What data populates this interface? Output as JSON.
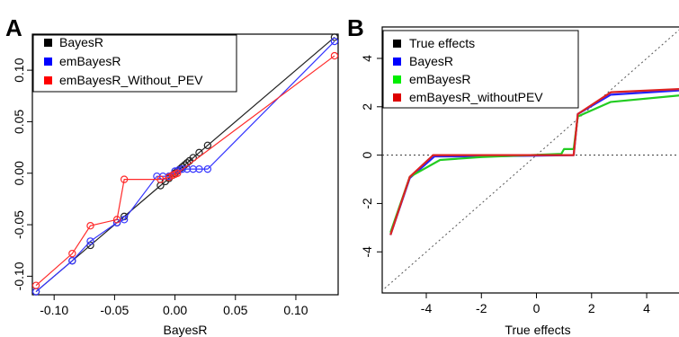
{
  "panels": [
    {
      "letter": "A",
      "chart_data": {
        "type": "scatter",
        "title": "",
        "xlabel": "BayesR",
        "ylabel": "",
        "xlim": [
          -0.118,
          0.135
        ],
        "ylim": [
          -0.118,
          0.135
        ],
        "x_ticks": [
          -0.1,
          -0.05,
          0,
          0.05,
          0.1
        ],
        "x_tick_labels": [
          "-0.10",
          "-0.05",
          "0.00",
          "0.05",
          "0.10"
        ],
        "y_ticks": [
          -0.1,
          -0.05,
          0,
          0.05,
          0.1
        ],
        "y_tick_labels": [
          "-0.10",
          "-0.05",
          "0.00",
          "0.05",
          "0.10"
        ],
        "grid": false,
        "legend_position": "top-left",
        "series": [
          {
            "name": "BayesR",
            "color": "#222222",
            "marker": "open-circle",
            "connected": true,
            "points": [
              [
                -0.115,
                -0.115
              ],
              [
                -0.085,
                -0.085
              ],
              [
                -0.07,
                -0.07
              ],
              [
                -0.048,
                -0.048
              ],
              [
                -0.042,
                -0.042
              ],
              [
                -0.012,
                -0.012
              ],
              [
                -0.008,
                -0.008
              ],
              [
                -0.005,
                -0.005
              ],
              [
                -0.002,
                -0.002
              ],
              [
                0.0,
                0.0
              ],
              [
                0.002,
                0.002
              ],
              [
                0.004,
                0.004
              ],
              [
                0.006,
                0.006
              ],
              [
                0.008,
                0.008
              ],
              [
                0.01,
                0.01
              ],
              [
                0.012,
                0.012
              ],
              [
                0.015,
                0.015
              ],
              [
                0.02,
                0.02
              ],
              [
                0.027,
                0.027
              ],
              [
                0.132,
                0.132
              ]
            ]
          },
          {
            "name": "emBayesR",
            "color": "#3333ff",
            "marker": "open-circle",
            "connected": true,
            "points": [
              [
                -0.115,
                -0.115
              ],
              [
                -0.085,
                -0.085
              ],
              [
                -0.07,
                -0.066
              ],
              [
                -0.048,
                -0.048
              ],
              [
                -0.042,
                -0.045
              ],
              [
                -0.015,
                -0.003
              ],
              [
                -0.01,
                -0.003
              ],
              [
                -0.005,
                -0.003
              ],
              [
                0.0,
                0.002
              ],
              [
                0.003,
                0.003
              ],
              [
                0.006,
                0.004
              ],
              [
                0.01,
                0.004
              ],
              [
                0.015,
                0.004
              ],
              [
                0.02,
                0.004
              ],
              [
                0.027,
                0.004
              ],
              [
                0.132,
                0.128
              ]
            ]
          },
          {
            "name": "emBayesR_Without_PEV",
            "color": "#ff2a2a",
            "marker": "open-circle",
            "connected": true,
            "points": [
              [
                -0.115,
                -0.109
              ],
              [
                -0.085,
                -0.078
              ],
              [
                -0.07,
                -0.051
              ],
              [
                -0.048,
                -0.045
              ],
              [
                -0.042,
                -0.006
              ],
              [
                -0.012,
                -0.006
              ],
              [
                -0.005,
                -0.004
              ],
              [
                -0.002,
                -0.002
              ],
              [
                0.0,
                -0.001
              ],
              [
                0.002,
                0.0
              ],
              [
                0.132,
                0.114
              ]
            ]
          }
        ]
      }
    },
    {
      "letter": "B",
      "chart_data": {
        "type": "line",
        "title": "",
        "xlabel": "True effects",
        "ylabel": "",
        "xlim": [
          -5.6,
          5.5
        ],
        "ylim": [
          -5.7,
          5.3
        ],
        "x_ticks": [
          -4,
          -2,
          0,
          2,
          4
        ],
        "x_tick_labels": [
          "-4",
          "-2",
          "0",
          "2",
          "4"
        ],
        "y_ticks": [
          -4,
          -2,
          0,
          2,
          4
        ],
        "y_tick_labels": [
          "-4",
          "-2",
          "0",
          "2",
          "4"
        ],
        "grid": false,
        "legend_position": "top-left",
        "reference_lines": [
          {
            "kind": "identity",
            "style": "dotted",
            "color": "#555555"
          },
          {
            "kind": "horizontal",
            "y": 0,
            "style": "dotted",
            "color": "#333333"
          }
        ],
        "series": [
          {
            "name": "True effects",
            "color": "#000000",
            "points": []
          },
          {
            "name": "BayesR",
            "color": "#2222ff",
            "points": [
              [
                -5.3,
                -3.3
              ],
              [
                -4.6,
                -0.95
              ],
              [
                -3.7,
                -0.05
              ],
              [
                -2.0,
                -0.05
              ],
              [
                1.35,
                0.0
              ],
              [
                1.5,
                1.7
              ],
              [
                2.7,
                2.5
              ],
              [
                5.5,
                2.7
              ]
            ]
          },
          {
            "name": "emBayesR",
            "color": "#22cc22",
            "points": [
              [
                -5.3,
                -3.2
              ],
              [
                -4.6,
                -0.9
              ],
              [
                -3.5,
                -0.2
              ],
              [
                -2.0,
                -0.08
              ],
              [
                0.9,
                0.05
              ],
              [
                1.0,
                0.25
              ],
              [
                1.35,
                0.25
              ],
              [
                1.5,
                1.6
              ],
              [
                2.7,
                2.2
              ],
              [
                5.5,
                2.5
              ]
            ]
          },
          {
            "name": "emBayesR_withoutPEV",
            "color": "#dd2222",
            "points": [
              [
                -5.3,
                -3.3
              ],
              [
                -4.6,
                -0.9
              ],
              [
                -3.75,
                0.0
              ],
              [
                1.35,
                0.0
              ],
              [
                1.5,
                1.7
              ],
              [
                2.7,
                2.6
              ],
              [
                5.5,
                2.75
              ]
            ]
          }
        ]
      }
    }
  ]
}
